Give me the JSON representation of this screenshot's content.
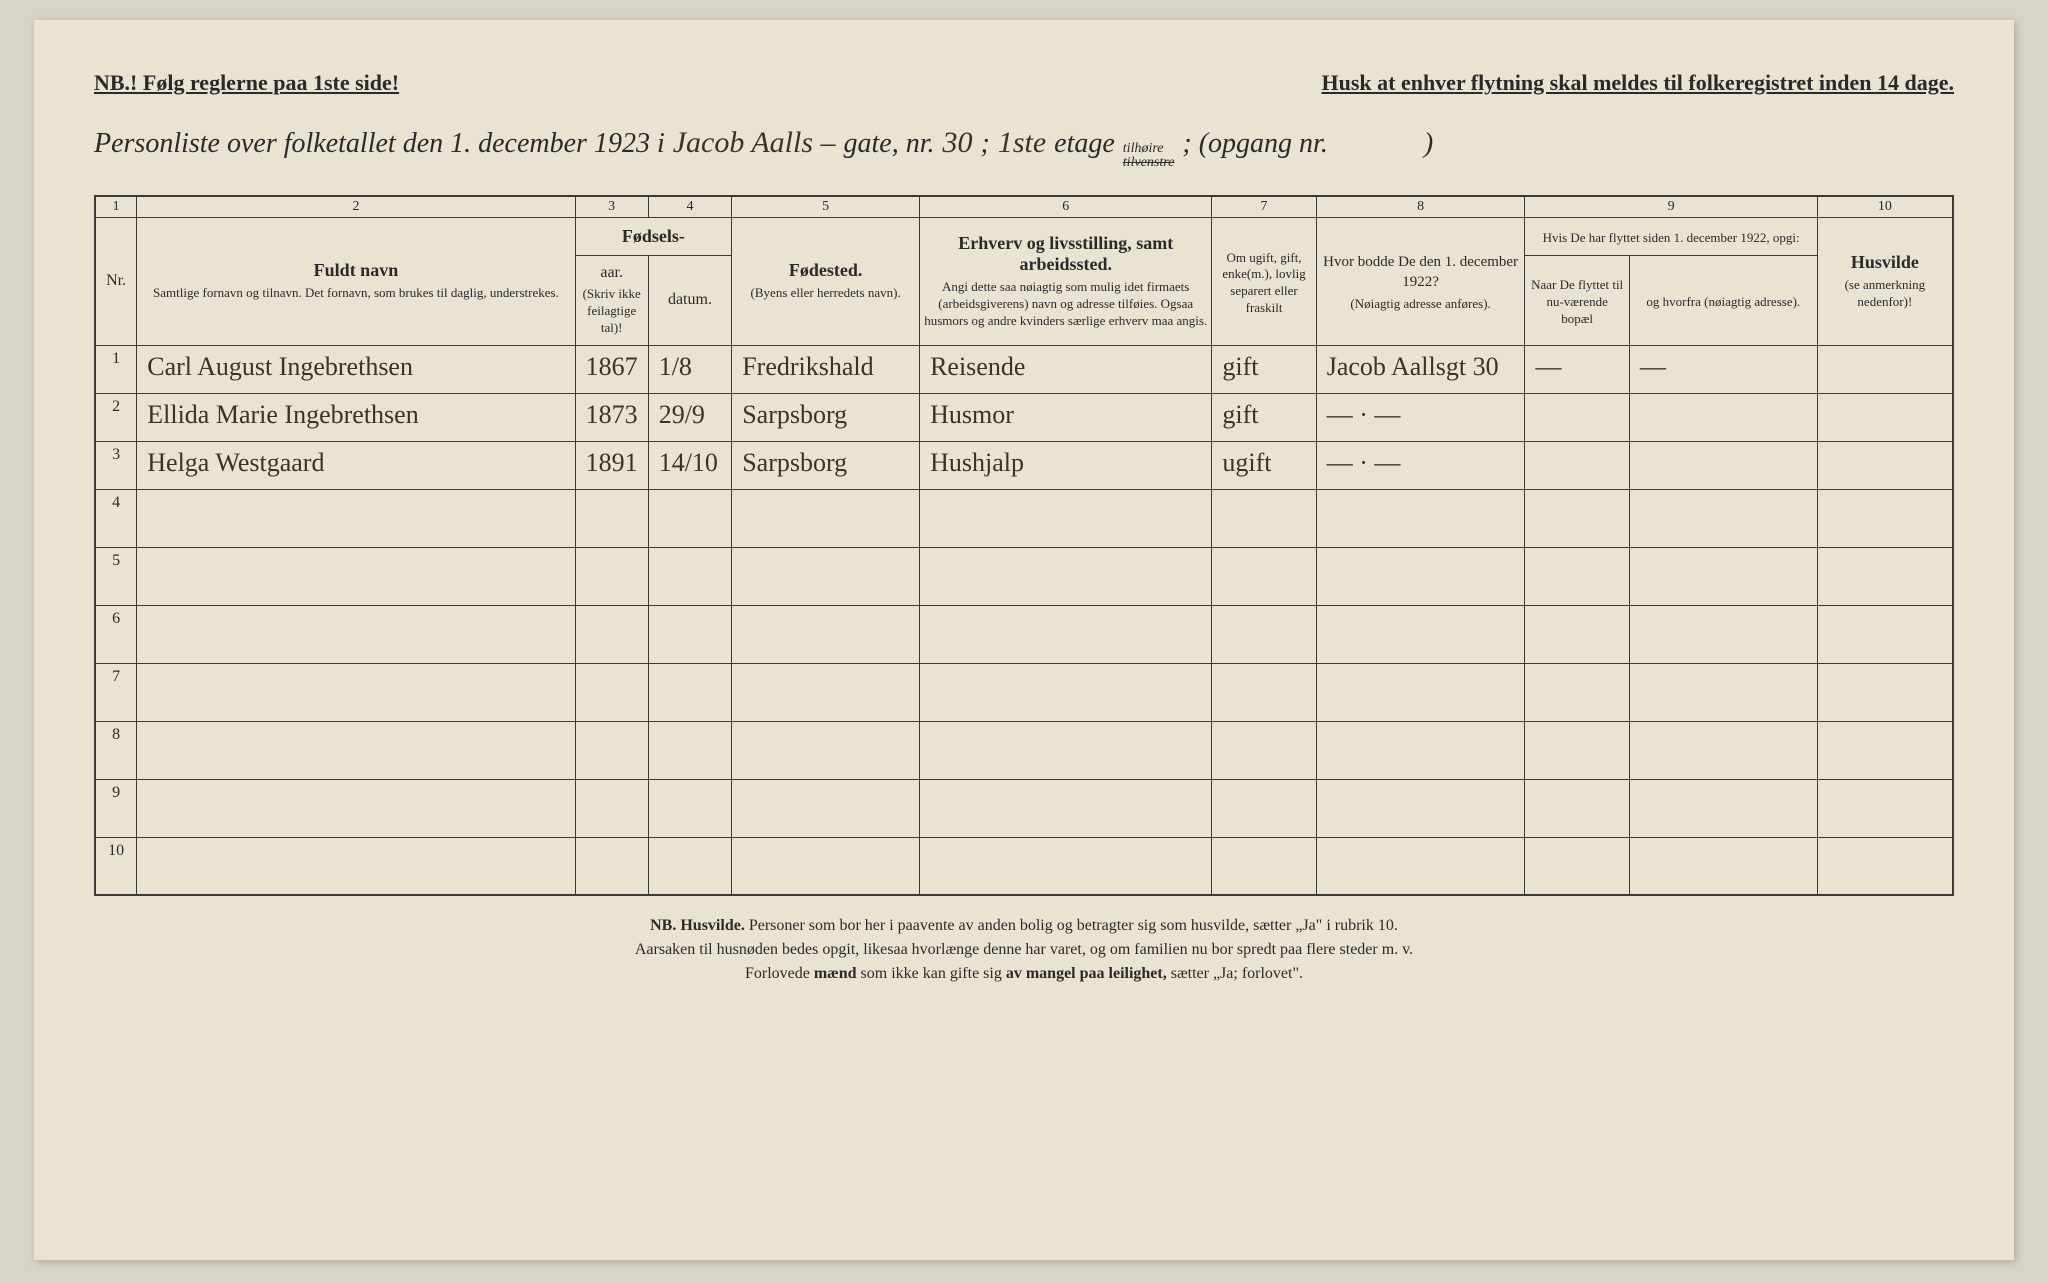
{
  "top": {
    "left": "NB.! Følg reglerne paa 1ste side!",
    "right": "Husk at enhver flytning skal meldes til folkeregistret inden 14 dage."
  },
  "title": {
    "prefix": "Personliste over folketallet den 1. december 1923 i",
    "street_hw": "Jacob Aalls –",
    "gate": "gate, nr.",
    "nr_hw": "30",
    "semi1": ";",
    "etage_hw": "1ste",
    "etage": "etage",
    "tilhoire": "tilhøire",
    "tilvenstre": "tilvenstre",
    "opgang": "; (opgang nr.",
    "close": ")"
  },
  "columns": {
    "nums": [
      "1",
      "2",
      "3",
      "4",
      "5",
      "6",
      "7",
      "8",
      "9",
      "10"
    ],
    "nr": "Nr.",
    "fuldt_navn": "Fuldt navn",
    "fuldt_navn_sub": "Samtlige fornavn og tilnavn. Det fornavn, som brukes til daglig, understrekes.",
    "fodsels": "Fødsels-",
    "aar": "aar.",
    "datum": "datum.",
    "fodsels_sub": "(Skriv ikke feilagtige tal)!",
    "fodested": "Fødested.",
    "fodested_sub": "(Byens eller herredets navn).",
    "erhverv": "Erhverv og livsstilling, samt arbeidssted.",
    "erhverv_sub": "Angi dette saa nøiagtig som mulig idet firmaets (arbeidsgiverens) navn og adresse tilføies. Ogsaa husmors og andre kvinders særlige erhverv maa angis.",
    "ugift": "Om ugift, gift, enke(m.), lovlig separert eller fraskilt",
    "bodde": "Hvor bodde De den 1. december 1922?",
    "bodde_sub": "(Nøiagtig adresse anføres).",
    "flyttet_header": "Hvis De har flyttet siden 1. december 1922, opgi:",
    "naar": "Naar De flyttet til nu-værende bopæl",
    "hvorfra": "og hvorfra (nøiagtig adresse).",
    "husvilde": "Husvilde",
    "husvilde_sub": "(se anmerkning nedenfor)!"
  },
  "rows": [
    {
      "nr": "1",
      "navn": "Carl August Ingebrethsen",
      "aar": "1867",
      "datum": "1/8",
      "fodested": "Fredrikshald",
      "erhverv": "Reisende",
      "ugift": "gift",
      "bodde": "Jacob Aallsgt 30",
      "naar": "—",
      "hvorfra": "—",
      "husvilde": ""
    },
    {
      "nr": "2",
      "navn": "Ellida Marie Ingebrethsen",
      "aar": "1873",
      "datum": "29/9",
      "fodested": "Sarpsborg",
      "erhverv": "Husmor",
      "ugift": "gift",
      "bodde": "— · —",
      "naar": "",
      "hvorfra": "",
      "husvilde": ""
    },
    {
      "nr": "3",
      "navn": "Helga Westgaard",
      "aar": "1891",
      "datum": "14/10",
      "fodested": "Sarpsborg",
      "erhverv": "Hushjalp",
      "ugift": "ugift",
      "bodde": "— · —",
      "naar": "",
      "hvorfra": "",
      "husvilde": ""
    }
  ],
  "empty_rows": [
    "4",
    "5",
    "6",
    "7",
    "8",
    "9",
    "10"
  ],
  "footer": {
    "line1_nb": "NB. Husvilde.",
    "line1": " Personer som bor her i paavente av anden bolig og betragter sig som husvilde, sætter „Ja\" i rubrik 10.",
    "line2": "Aarsaken til husnøden bedes opgit, likesaa hvorlænge denne har varet, og om familien nu bor spredt paa flere steder m. v.",
    "line3a": "Forlovede ",
    "line3b": "mænd",
    "line3c": " som ikke kan gifte sig ",
    "line3d": "av mangel paa leilighet,",
    "line3e": " sætter „Ja; forlovet\"."
  }
}
